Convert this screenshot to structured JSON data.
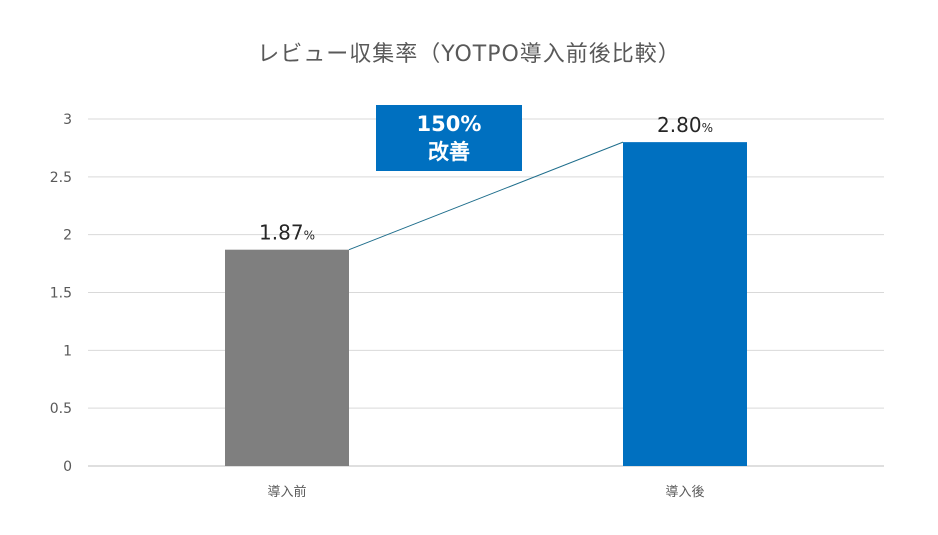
{
  "chart_data": {
    "type": "bar",
    "title": "レビュー収集率（YOTPO導入前後比較）",
    "categories": [
      "導入前",
      "導入後"
    ],
    "values": [
      1.87,
      2.8
    ],
    "value_labels": [
      "1.87",
      "2.80"
    ],
    "value_unit": "%",
    "bar_colors": [
      "#7F7F7F",
      "#0070C0"
    ],
    "ylim": [
      0,
      3
    ],
    "yticks": [
      "0",
      "0.5",
      "1",
      "1.5",
      "2",
      "2.5",
      "3"
    ],
    "grid": true,
    "connector_line_color": "#1F6E8C",
    "annotation": {
      "line1": "150%",
      "line2": "改善",
      "color": "#0070C0"
    }
  }
}
